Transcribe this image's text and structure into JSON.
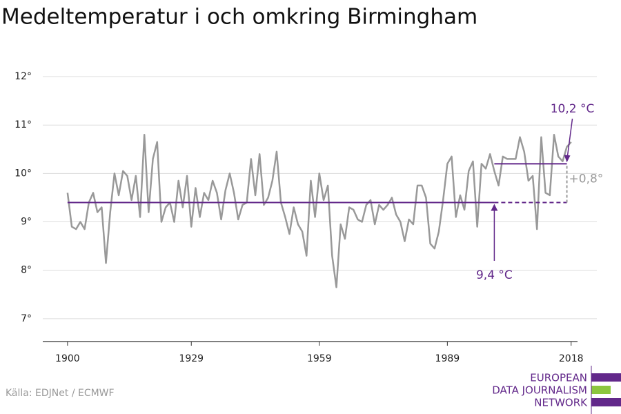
{
  "chart_data": {
    "type": "line",
    "title": "Medeltemperatur i och omkring Birmingham",
    "source": "Källa: EDJNet / ECMWF",
    "logo": [
      "EUROPEAN",
      "DATA JOURNALISM",
      "NETWORK"
    ],
    "x": [
      1900,
      1901,
      1902,
      1903,
      1904,
      1905,
      1906,
      1907,
      1908,
      1909,
      1910,
      1911,
      1912,
      1913,
      1914,
      1915,
      1916,
      1917,
      1918,
      1919,
      1920,
      1921,
      1922,
      1923,
      1924,
      1925,
      1926,
      1927,
      1928,
      1929,
      1930,
      1931,
      1932,
      1933,
      1934,
      1935,
      1936,
      1937,
      1938,
      1939,
      1940,
      1941,
      1942,
      1943,
      1944,
      1945,
      1946,
      1947,
      1948,
      1949,
      1950,
      1951,
      1952,
      1953,
      1954,
      1955,
      1956,
      1957,
      1958,
      1959,
      1960,
      1961,
      1962,
      1963,
      1964,
      1965,
      1966,
      1967,
      1968,
      1969,
      1970,
      1971,
      1972,
      1973,
      1974,
      1975,
      1976,
      1977,
      1978,
      1979,
      1980,
      1981,
      1982,
      1983,
      1984,
      1985,
      1986,
      1987,
      1988,
      1989,
      1990,
      1991,
      1992,
      1993,
      1994,
      1995,
      1996,
      1997,
      1998,
      1999,
      2000,
      2001,
      2002,
      2003,
      2004,
      2005,
      2006,
      2007,
      2008,
      2009,
      2010,
      2011,
      2012,
      2013,
      2014,
      2015,
      2016,
      2017,
      2018
    ],
    "series": [
      {
        "color": "#999999",
        "values": [
          9.6,
          8.9,
          8.85,
          9.0,
          8.85,
          9.4,
          9.6,
          9.2,
          9.3,
          8.15,
          9.2,
          10.0,
          9.55,
          10.05,
          9.95,
          9.45,
          9.95,
          9.1,
          10.8,
          9.2,
          10.3,
          10.65,
          9.0,
          9.3,
          9.4,
          9.0,
          9.85,
          9.3,
          9.95,
          8.9,
          9.7,
          9.1,
          9.6,
          9.45,
          9.85,
          9.6,
          9.05,
          9.65,
          10.0,
          9.6,
          9.05,
          9.35,
          9.4,
          10.3,
          9.55,
          10.4,
          9.35,
          9.5,
          9.85,
          10.45,
          9.4,
          9.1,
          8.75,
          9.3,
          8.95,
          8.8,
          8.3,
          9.85,
          9.1,
          10.0,
          9.45,
          9.75,
          8.3,
          7.65,
          8.95,
          8.65,
          9.3,
          9.25,
          9.05,
          9.0,
          9.35,
          9.45,
          8.95,
          9.35,
          9.25,
          9.35,
          9.5,
          9.15,
          9.0,
          8.6,
          9.05,
          8.95,
          9.75,
          9.75,
          9.5,
          8.55,
          8.45,
          8.8,
          9.45,
          10.2,
          10.35,
          9.1,
          9.55,
          9.25,
          10.05,
          10.25,
          8.9,
          10.2,
          10.1,
          10.4,
          10.05,
          9.75,
          10.35,
          10.3,
          10.3,
          10.3,
          10.75,
          10.45,
          9.85,
          9.95,
          8.85,
          10.75,
          9.6,
          9.55,
          10.8,
          10.35,
          10.25,
          10.55,
          10.65
        ]
      }
    ],
    "reference_color": "#62288a",
    "reference_lines": [
      {
        "label": "9,4 °C",
        "value": 9.4,
        "solid": [
          1900,
          2000
        ],
        "dashed": [
          2000,
          2017
        ]
      },
      {
        "label": "10,2 °C",
        "value": 10.2,
        "solid": [
          2000,
          2017
        ]
      }
    ],
    "difference": {
      "label": "+0,8°",
      "value": 0.8,
      "x": 2017,
      "color": "#999999"
    },
    "xlim": [
      1894.2,
      2019.5
    ],
    "ylim": [
      6.5,
      12.2
    ],
    "xticks": [
      1900,
      1929,
      1959,
      1989,
      2018
    ],
    "yticks": [
      {
        "value": 7,
        "label": "7°"
      },
      {
        "value": 8,
        "label": "8°"
      },
      {
        "value": 9,
        "label": "9°"
      },
      {
        "value": 10,
        "label": "10°"
      },
      {
        "value": 11,
        "label": "11°"
      },
      {
        "value": 12,
        "label": "12°"
      }
    ],
    "grid": true
  }
}
